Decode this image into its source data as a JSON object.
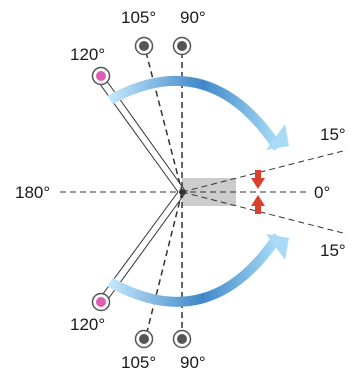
{
  "labels": {
    "top_105": "105°",
    "top_90": "90°",
    "top_120": "120°",
    "right_15_top": "15°",
    "right_0": "0°",
    "right_15_bottom": "15°",
    "left_180": "180°",
    "bottom_120": "120°",
    "bottom_105": "105°",
    "bottom_90": "90°"
  },
  "colors": {
    "pink_marker": "#e05cb4",
    "dark_marker": "#555555",
    "blue_arrow_light": "#bfe3fb",
    "blue_arrow_dark": "#3d86c6",
    "red_arrow": "#d9412a",
    "gray_box": "#cccccc"
  },
  "icons": {
    "curved_arrows": "curved-arrow-icon",
    "small_arrows": "red-arrow-icon",
    "markers": "circle-marker-icon"
  }
}
